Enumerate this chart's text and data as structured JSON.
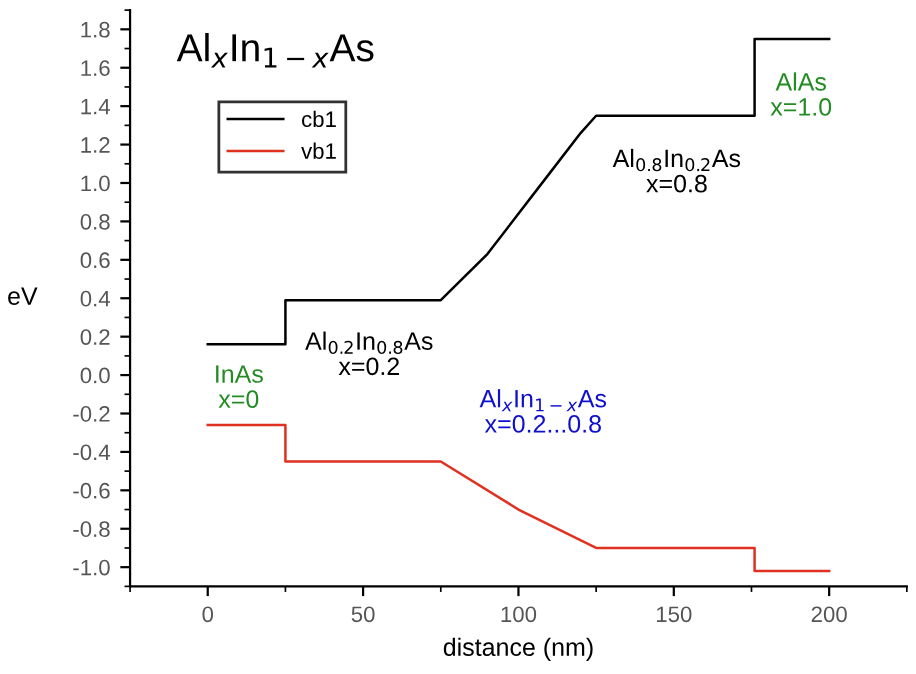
{
  "chart_data": {
    "type": "line",
    "title": "Al$_{x}$In$_{1−x}$As",
    "xlabel": "distance (nm)",
    "ylabel": "eV",
    "xlim": [
      -25,
      225
    ],
    "ylim": [
      -1.1,
      1.9
    ],
    "xticks": [
      0,
      50,
      100,
      150,
      200
    ],
    "yticks": [
      {
        "value": -1,
        "label": "-1.0"
      },
      -0.8,
      -0.6,
      -0.4,
      -0.2,
      {
        "value": 0,
        "label": "0.0"
      },
      0.2,
      0.4,
      0.6,
      0.8,
      {
        "value": 1,
        "label": "1.0"
      },
      1.2,
      1.4,
      1.6,
      1.8
    ],
    "legend": "top left",
    "grid": false,
    "series": [
      {
        "name": "cb1",
        "color": "#000000",
        "x": [
          0,
          25,
          25,
          75,
          90,
          110,
          120,
          125,
          176,
          176,
          200
        ],
        "values": [
          0.16,
          0.16,
          0.39,
          0.39,
          0.63,
          1.05,
          1.26,
          1.35,
          1.35,
          1.75,
          1.75
        ]
      },
      {
        "name": "vb1",
        "color": "#e03020",
        "x": [
          0,
          25,
          25,
          75,
          100,
          125,
          176,
          176,
          200
        ],
        "values": [
          -0.26,
          -0.26,
          -0.45,
          -0.45,
          -0.7,
          -0.9,
          -0.9,
          -1.02,
          -1.02
        ]
      }
    ],
    "annotations": [
      "InAs\nx=0",
      "Al$_{0.2}$In$_{0.8}$As\nx=0.2",
      "Al$_{x}$In$_{1−x}$As\nx=0.2...0.8",
      "Al$_{0.8}$In$_{0.2}$As\nx=0.8",
      "AlAs\nx=1.0"
    ]
  }
}
